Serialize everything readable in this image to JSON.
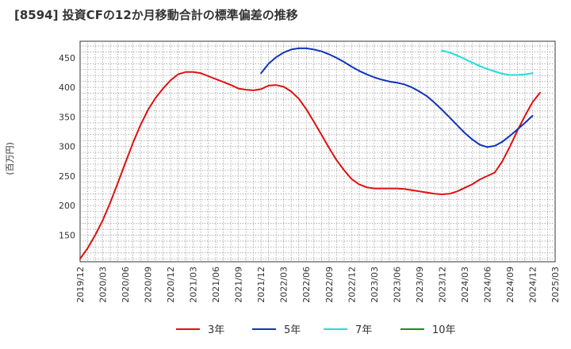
{
  "chart_data": {
    "type": "line",
    "title": "[8594]  投資CFの12か月移動合計の標準偏差の推移",
    "ylabel": "(百万円)",
    "xlabel": "",
    "ylim": [
      105,
      478
    ],
    "yticks": [
      150,
      200,
      250,
      300,
      350,
      400,
      450
    ],
    "xlim": [
      "2019-12",
      "2025-03"
    ],
    "xticks": [
      "2019/12",
      "2020/03",
      "2020/06",
      "2020/09",
      "2020/12",
      "2021/03",
      "2021/06",
      "2021/09",
      "2021/12",
      "2022/03",
      "2022/06",
      "2022/09",
      "2022/12",
      "2023/03",
      "2023/06",
      "2023/09",
      "2023/12",
      "2024/03",
      "2024/06",
      "2024/09",
      "2024/12",
      "2025/03"
    ],
    "grid": true,
    "legend_position": "bottom",
    "series": [
      {
        "name": "3年",
        "color": "#dd1111",
        "points": [
          [
            "2019-12",
            110
          ],
          [
            "2020-01",
            128
          ],
          [
            "2020-02",
            150
          ],
          [
            "2020-03",
            175
          ],
          [
            "2020-04",
            205
          ],
          [
            "2020-05",
            238
          ],
          [
            "2020-06",
            272
          ],
          [
            "2020-07",
            306
          ],
          [
            "2020-08",
            336
          ],
          [
            "2020-09",
            362
          ],
          [
            "2020-10",
            382
          ],
          [
            "2020-11",
            398
          ],
          [
            "2020-12",
            412
          ],
          [
            "2021-01",
            422
          ],
          [
            "2021-02",
            426
          ],
          [
            "2021-03",
            426
          ],
          [
            "2021-04",
            424
          ],
          [
            "2021-05",
            419
          ],
          [
            "2021-06",
            414
          ],
          [
            "2021-07",
            409
          ],
          [
            "2021-08",
            404
          ],
          [
            "2021-09",
            398
          ],
          [
            "2021-10",
            396
          ],
          [
            "2021-11",
            395
          ],
          [
            "2021-12",
            397
          ],
          [
            "2022-01",
            403
          ],
          [
            "2022-02",
            404
          ],
          [
            "2022-03",
            401
          ],
          [
            "2022-04",
            393
          ],
          [
            "2022-05",
            381
          ],
          [
            "2022-06",
            363
          ],
          [
            "2022-07",
            342
          ],
          [
            "2022-08",
            320
          ],
          [
            "2022-09",
            298
          ],
          [
            "2022-10",
            277
          ],
          [
            "2022-11",
            260
          ],
          [
            "2022-12",
            245
          ],
          [
            "2023-01",
            236
          ],
          [
            "2023-02",
            231
          ],
          [
            "2023-03",
            229
          ],
          [
            "2023-04",
            229
          ],
          [
            "2023-05",
            229
          ],
          [
            "2023-06",
            229
          ],
          [
            "2023-07",
            228
          ],
          [
            "2023-08",
            226
          ],
          [
            "2023-09",
            224
          ],
          [
            "2023-10",
            222
          ],
          [
            "2023-11",
            220
          ],
          [
            "2023-12",
            219
          ],
          [
            "2024-01",
            220
          ],
          [
            "2024-02",
            224
          ],
          [
            "2024-03",
            230
          ],
          [
            "2024-04",
            236
          ],
          [
            "2024-05",
            244
          ],
          [
            "2024-06",
            250
          ],
          [
            "2024-07",
            256
          ],
          [
            "2024-08",
            275
          ],
          [
            "2024-09",
            300
          ],
          [
            "2024-10",
            327
          ],
          [
            "2024-11",
            352
          ],
          [
            "2024-12",
            375
          ],
          [
            "2025-01",
            391
          ]
        ]
      },
      {
        "name": "5年",
        "color": "#1133bb",
        "points": [
          [
            "2021-12",
            424
          ],
          [
            "2022-01",
            440
          ],
          [
            "2022-02",
            451
          ],
          [
            "2022-03",
            459
          ],
          [
            "2022-04",
            464
          ],
          [
            "2022-05",
            466
          ],
          [
            "2022-06",
            466
          ],
          [
            "2022-07",
            464
          ],
          [
            "2022-08",
            461
          ],
          [
            "2022-09",
            456
          ],
          [
            "2022-10",
            450
          ],
          [
            "2022-11",
            443
          ],
          [
            "2022-12",
            435
          ],
          [
            "2023-01",
            428
          ],
          [
            "2023-02",
            422
          ],
          [
            "2023-03",
            417
          ],
          [
            "2023-04",
            413
          ],
          [
            "2023-05",
            410
          ],
          [
            "2023-06",
            408
          ],
          [
            "2023-07",
            405
          ],
          [
            "2023-08",
            400
          ],
          [
            "2023-09",
            393
          ],
          [
            "2023-10",
            385
          ],
          [
            "2023-11",
            374
          ],
          [
            "2023-12",
            362
          ],
          [
            "2024-01",
            349
          ],
          [
            "2024-02",
            336
          ],
          [
            "2024-03",
            323
          ],
          [
            "2024-04",
            312
          ],
          [
            "2024-05",
            303
          ],
          [
            "2024-06",
            299
          ],
          [
            "2024-07",
            301
          ],
          [
            "2024-08",
            308
          ],
          [
            "2024-09",
            318
          ],
          [
            "2024-10",
            329
          ],
          [
            "2024-11",
            340
          ],
          [
            "2024-12",
            352
          ]
        ]
      },
      {
        "name": "7年",
        "color": "#22dddd",
        "points": [
          [
            "2023-12",
            462
          ],
          [
            "2024-01",
            459
          ],
          [
            "2024-02",
            454
          ],
          [
            "2024-03",
            448
          ],
          [
            "2024-04",
            442
          ],
          [
            "2024-05",
            436
          ],
          [
            "2024-06",
            431
          ],
          [
            "2024-07",
            427
          ],
          [
            "2024-08",
            423
          ],
          [
            "2024-09",
            421
          ],
          [
            "2024-10",
            421
          ],
          [
            "2024-11",
            422
          ],
          [
            "2024-12",
            424
          ]
        ]
      },
      {
        "name": "10年",
        "color": "#228822",
        "points": []
      }
    ]
  }
}
